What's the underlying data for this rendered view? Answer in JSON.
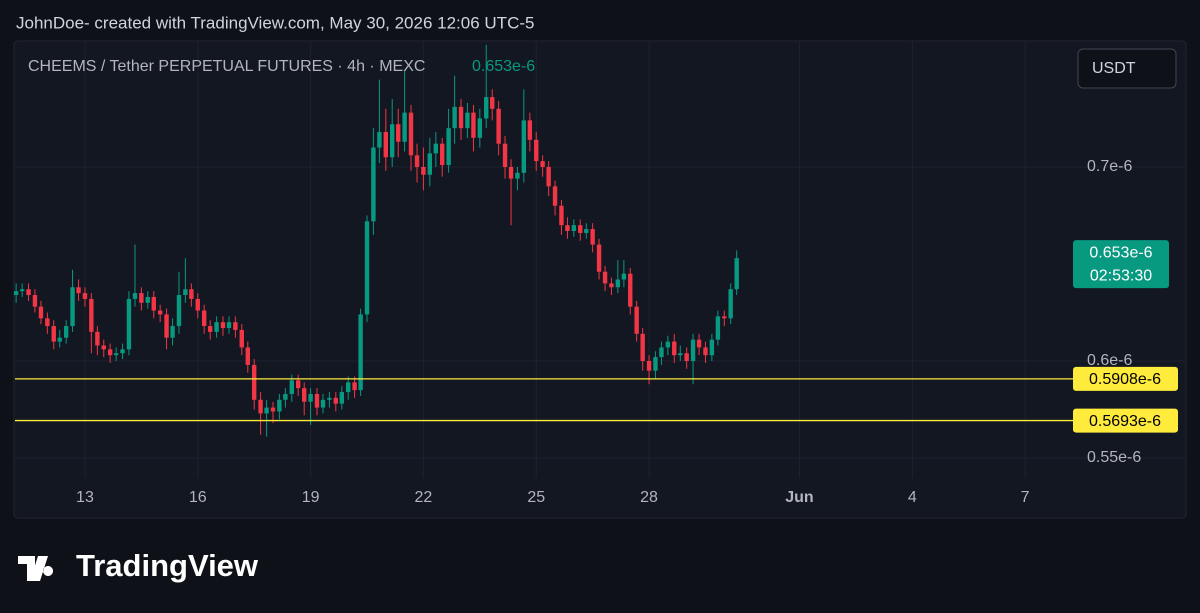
{
  "header": "JohnDoe- created with TradingView.com, May 30, 2026 12:06 UTC-5",
  "chart_data": {
    "type": "candlestick",
    "title": "CHEEMS / Tether PERPETUAL FUTURES · 4h · MEXC",
    "currency": "USDT",
    "up_color": "#089981",
    "down_color": "#f23645",
    "x": [
      11.17,
      11.33,
      11.5,
      11.67,
      11.83,
      12,
      12.17,
      12.33,
      12.5,
      12.67,
      12.83,
      13,
      13.17,
      13.33,
      13.5,
      13.67,
      13.83,
      14,
      14.17,
      14.33,
      14.5,
      14.67,
      14.83,
      15,
      15.17,
      15.33,
      15.5,
      15.67,
      15.83,
      16,
      16.17,
      16.33,
      16.5,
      16.67,
      16.83,
      17,
      17.17,
      17.33,
      17.5,
      17.67,
      17.83,
      18,
      18.17,
      18.33,
      18.5,
      18.67,
      18.83,
      19,
      19.17,
      19.33,
      19.5,
      19.67,
      19.83,
      20,
      20.17,
      20.33,
      20.5,
      20.67,
      20.83,
      21,
      21.17,
      21.33,
      21.5,
      21.67,
      21.83,
      22,
      22.17,
      22.33,
      22.5,
      22.67,
      22.83,
      23,
      23.17,
      23.33,
      23.5,
      23.67,
      23.83,
      24,
      24.17,
      24.33,
      24.5,
      24.67,
      24.83,
      25,
      25.17,
      25.33,
      25.5,
      25.67,
      25.83,
      26,
      26.17,
      26.33,
      26.5,
      26.67,
      26.83,
      27,
      27.17,
      27.33,
      27.5,
      27.67,
      27.83,
      28,
      28.17,
      28.33,
      28.5,
      28.67,
      28.83,
      29,
      29.17,
      29.33,
      29.5,
      29.67,
      29.83,
      30,
      30.17,
      30.33
    ],
    "open": [
      6.34e-07,
      6.36e-07,
      6.37e-07,
      6.34e-07,
      6.28e-07,
      6.22e-07,
      6.18e-07,
      6.1e-07,
      6.12e-07,
      6.18e-07,
      6.38e-07,
      6.35e-07,
      6.32e-07,
      6.15e-07,
      6.08e-07,
      6.06e-07,
      6.03e-07,
      6.04e-07,
      6.06e-07,
      6.32e-07,
      6.35e-07,
      6.3e-07,
      6.33e-07,
      6.26e-07,
      6.24e-07,
      6.12e-07,
      6.18e-07,
      6.34e-07,
      6.37e-07,
      6.32e-07,
      6.26e-07,
      6.18e-07,
      6.15e-07,
      6.2e-07,
      6.17e-07,
      6.2e-07,
      6.16e-07,
      6.07e-07,
      5.98e-07,
      5.8e-07,
      5.73e-07,
      5.76e-07,
      5.74e-07,
      5.8e-07,
      5.83e-07,
      5.9e-07,
      5.86e-07,
      5.79e-07,
      5.83e-07,
      5.76e-07,
      5.8e-07,
      5.81e-07,
      5.78e-07,
      5.84e-07,
      5.89e-07,
      5.85e-07,
      6.24e-07,
      6.72e-07,
      7.1e-07,
      7.18e-07,
      7.05e-07,
      7.22e-07,
      7.13e-07,
      7.28e-07,
      7.06e-07,
      7e-07,
      6.96e-07,
      7.07e-07,
      7.12e-07,
      7.01e-07,
      7.2e-07,
      7.31e-07,
      7.2e-07,
      7.28e-07,
      7.15e-07,
      7.25e-07,
      7.36e-07,
      7.3e-07,
      7.12e-07,
      7e-07,
      6.94e-07,
      6.97e-07,
      7.24e-07,
      7.14e-07,
      7.03e-07,
      7e-07,
      6.9e-07,
      6.8e-07,
      6.7e-07,
      6.67e-07,
      6.7e-07,
      6.66e-07,
      6.68e-07,
      6.6e-07,
      6.46e-07,
      6.4e-07,
      6.38e-07,
      6.42e-07,
      6.45e-07,
      6.28e-07,
      6.14e-07,
      6e-07,
      5.95e-07,
      6.02e-07,
      6.07e-07,
      6.1e-07,
      6.03e-07,
      6.04e-07,
      6e-07,
      6.11e-07,
      6.07e-07,
      6.03e-07,
      6.11e-07,
      6.23e-07,
      6.22e-07,
      6.37e-07
    ],
    "high": [
      6.4e-07,
      6.4e-07,
      6.4e-07,
      6.37e-07,
      6.31e-07,
      6.25e-07,
      6.21e-07,
      6.16e-07,
      6.21e-07,
      6.47e-07,
      6.42e-07,
      6.38e-07,
      6.35e-07,
      6.18e-07,
      6.11e-07,
      6.09e-07,
      6.07e-07,
      6.09e-07,
      6.36e-07,
      6.6e-07,
      6.38e-07,
      6.36e-07,
      6.36e-07,
      6.29e-07,
      6.27e-07,
      6.22e-07,
      6.46e-07,
      6.53e-07,
      6.4e-07,
      6.35e-07,
      6.29e-07,
      6.21e-07,
      6.23e-07,
      6.23e-07,
      6.23e-07,
      6.23e-07,
      6.19e-07,
      6.1e-07,
      6.01e-07,
      5.84e-07,
      5.8e-07,
      5.79e-07,
      5.83e-07,
      5.86e-07,
      5.93e-07,
      5.93e-07,
      5.89e-07,
      5.86e-07,
      5.86e-07,
      5.83e-07,
      5.84e-07,
      5.84e-07,
      5.87e-07,
      5.92e-07,
      5.92e-07,
      6.27e-07,
      6.75e-07,
      7.2e-07,
      7.45e-07,
      7.3e-07,
      7.35e-07,
      7.3e-07,
      7.5e-07,
      7.32e-07,
      7.12e-07,
      7.1e-07,
      7.15e-07,
      7.18e-07,
      7.15e-07,
      7.3e-07,
      7.47e-07,
      7.35e-07,
      7.33e-07,
      7.32e-07,
      7.3e-07,
      7.63e-07,
      7.4e-07,
      7.34e-07,
      7.16e-07,
      7.04e-07,
      7e-07,
      7.4e-07,
      7.28e-07,
      7.18e-07,
      7.06e-07,
      7.03e-07,
      6.93e-07,
      6.83e-07,
      6.74e-07,
      6.73e-07,
      6.73e-07,
      6.71e-07,
      6.71e-07,
      6.63e-07,
      6.49e-07,
      6.43e-07,
      6.52e-07,
      6.52e-07,
      6.48e-07,
      6.31e-07,
      6.17e-07,
      6.03e-07,
      6.05e-07,
      6.1e-07,
      6.13e-07,
      6.14e-07,
      6.08e-07,
      6.07e-07,
      6.14e-07,
      6.14e-07,
      6.1e-07,
      6.14e-07,
      6.26e-07,
      6.26e-07,
      6.4e-07,
      6.57e-07
    ],
    "low": [
      6.3e-07,
      6.33e-07,
      6.31e-07,
      6.25e-07,
      6.19e-07,
      6.14e-07,
      6.06e-07,
      6.07e-07,
      6.09e-07,
      6.15e-07,
      6.31e-07,
      6.28e-07,
      6.04e-07,
      6.03e-07,
      6.02e-07,
      5.99e-07,
      6e-07,
      6.01e-07,
      6.03e-07,
      6.28e-07,
      6.26e-07,
      6.27e-07,
      6.22e-07,
      6.2e-07,
      6.06e-07,
      6.08e-07,
      6.14e-07,
      6.3e-07,
      6.28e-07,
      6.22e-07,
      6.14e-07,
      6.11e-07,
      6.12e-07,
      6.13e-07,
      6.14e-07,
      6.12e-07,
      6.03e-07,
      5.94e-07,
      5.75e-07,
      5.62e-07,
      5.61e-07,
      5.68e-07,
      5.7e-07,
      5.76e-07,
      5.79e-07,
      5.82e-07,
      5.72e-07,
      5.67e-07,
      5.72e-07,
      5.73e-07,
      5.76e-07,
      5.74e-07,
      5.75e-07,
      5.8e-07,
      5.81e-07,
      5.82e-07,
      6.2e-07,
      6.65e-07,
      7.02e-07,
      6.98e-07,
      7e-07,
      7.05e-07,
      7.08e-07,
      6.98e-07,
      6.92e-07,
      6.88e-07,
      6.9e-07,
      7e-07,
      6.95e-07,
      6.97e-07,
      7.12e-07,
      7.14e-07,
      7.15e-07,
      7.08e-07,
      7.1e-07,
      7.2e-07,
      7.24e-07,
      7.06e-07,
      6.94e-07,
      6.7e-07,
      6.88e-07,
      6.92e-07,
      7.08e-07,
      6.98e-07,
      6.95e-07,
      6.85e-07,
      6.75e-07,
      6.65e-07,
      6.63e-07,
      6.64e-07,
      6.62e-07,
      6.63e-07,
      6.56e-07,
      6.42e-07,
      6.36e-07,
      6.34e-07,
      6.35e-07,
      6.38e-07,
      6.24e-07,
      6.1e-07,
      5.95e-07,
      5.88e-07,
      5.91e-07,
      5.98e-07,
      6.03e-07,
      5.99e-07,
      6e-07,
      5.96e-07,
      5.88e-07,
      6.03e-07,
      5.99e-07,
      6e-07,
      6.08e-07,
      6.18e-07,
      6.19e-07,
      6.34e-07
    ],
    "close": [
      6.36e-07,
      6.37e-07,
      6.34e-07,
      6.28e-07,
      6.22e-07,
      6.18e-07,
      6.1e-07,
      6.12e-07,
      6.18e-07,
      6.38e-07,
      6.35e-07,
      6.32e-07,
      6.15e-07,
      6.08e-07,
      6.06e-07,
      6.03e-07,
      6.04e-07,
      6.06e-07,
      6.32e-07,
      6.35e-07,
      6.3e-07,
      6.33e-07,
      6.26e-07,
      6.24e-07,
      6.12e-07,
      6.18e-07,
      6.34e-07,
      6.37e-07,
      6.32e-07,
      6.26e-07,
      6.18e-07,
      6.15e-07,
      6.2e-07,
      6.17e-07,
      6.2e-07,
      6.16e-07,
      6.07e-07,
      5.98e-07,
      5.8e-07,
      5.73e-07,
      5.76e-07,
      5.74e-07,
      5.8e-07,
      5.83e-07,
      5.9e-07,
      5.86e-07,
      5.79e-07,
      5.83e-07,
      5.76e-07,
      5.8e-07,
      5.81e-07,
      5.78e-07,
      5.84e-07,
      5.89e-07,
      5.85e-07,
      6.24e-07,
      6.72e-07,
      7.1e-07,
      7.18e-07,
      7.05e-07,
      7.22e-07,
      7.13e-07,
      7.28e-07,
      7.06e-07,
      7e-07,
      6.96e-07,
      7.07e-07,
      7.12e-07,
      7.01e-07,
      7.2e-07,
      7.31e-07,
      7.2e-07,
      7.28e-07,
      7.15e-07,
      7.25e-07,
      7.36e-07,
      7.3e-07,
      7.12e-07,
      7e-07,
      6.94e-07,
      6.97e-07,
      7.24e-07,
      7.14e-07,
      7.03e-07,
      7e-07,
      6.9e-07,
      6.8e-07,
      6.7e-07,
      6.67e-07,
      6.7e-07,
      6.66e-07,
      6.68e-07,
      6.6e-07,
      6.46e-07,
      6.4e-07,
      6.38e-07,
      6.42e-07,
      6.45e-07,
      6.28e-07,
      6.14e-07,
      6e-07,
      5.95e-07,
      6.02e-07,
      6.07e-07,
      6.1e-07,
      6.03e-07,
      6.04e-07,
      6e-07,
      6.11e-07,
      6.07e-07,
      6.03e-07,
      6.11e-07,
      6.23e-07,
      6.22e-07,
      6.37e-07,
      6.53e-07
    ],
    "last_price": {
      "value": 6.53e-07,
      "label": "0.653e-6",
      "color": "#089981"
    },
    "countdown": "02:53:30",
    "hlines": [
      {
        "value": 5.908e-07,
        "label": "0.5908e-6",
        "color": "#ffeb3b"
      },
      {
        "value": 5.693e-07,
        "label": "0.5693e-6",
        "color": "#ffeb3b"
      }
    ],
    "xlim": [
      11.14,
      39.06
    ],
    "xticks": [
      13,
      16,
      19,
      22,
      25,
      28,
      {
        "value": 32,
        "label": "Jun"
      },
      {
        "value": 35,
        "label": "4"
      },
      {
        "value": 38,
        "label": "7"
      }
    ],
    "ylim": [
      5.397e-07,
      7.644e-07
    ],
    "yticks": [
      {
        "value": 5.5e-07,
        "label": "0.55e-6"
      },
      {
        "value": 6e-07,
        "label": "0.6e-6"
      },
      {
        "value": 7e-07,
        "label": "0.7e-6"
      }
    ],
    "grid": true
  },
  "brand": "TradingView"
}
